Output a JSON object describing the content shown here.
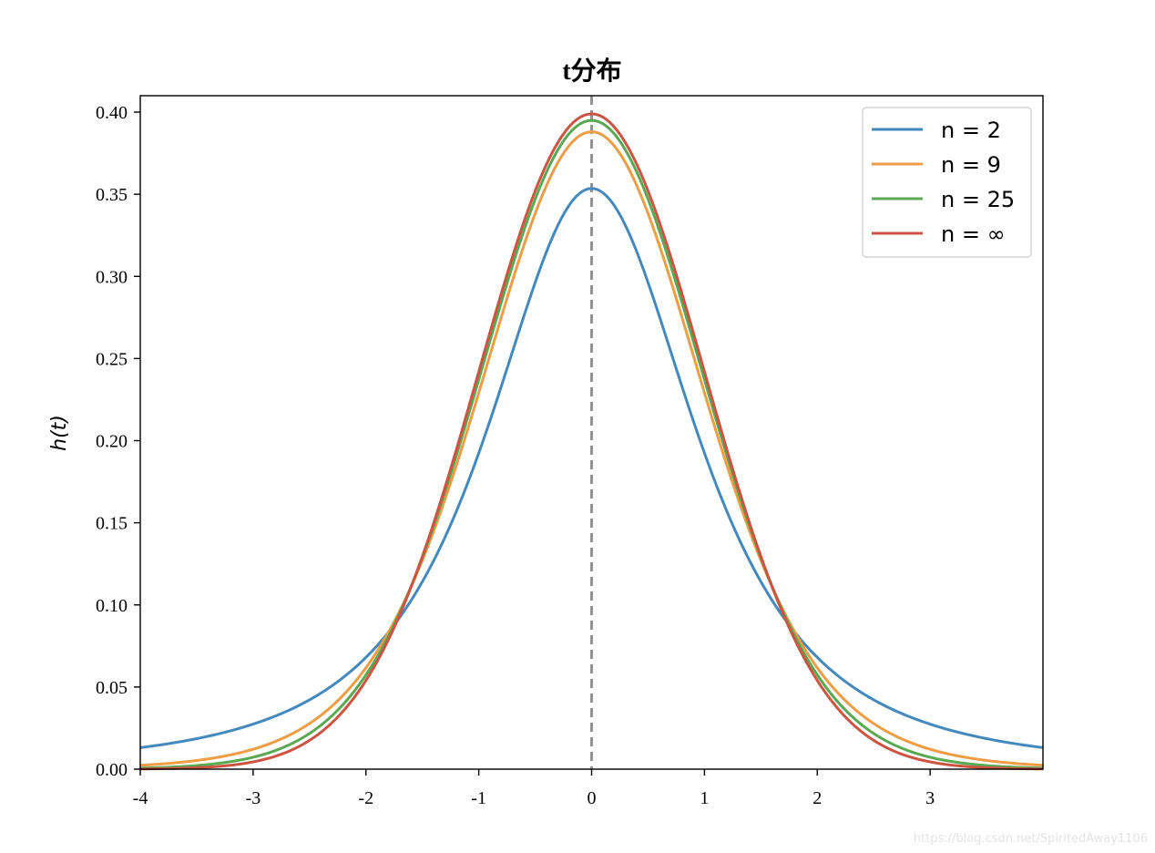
{
  "chart_data": {
    "type": "line",
    "title": "t分布",
    "xlabel": "",
    "ylabel": "h(t)",
    "xlim": [
      -4,
      4
    ],
    "ylim": [
      0,
      0.41
    ],
    "x_ticks": [
      -4,
      -3,
      -2,
      -1,
      0,
      1,
      2,
      3
    ],
    "x_tick_labels": [
      "-4",
      "-3",
      "-2",
      "-1",
      "0",
      "1",
      "2",
      "3"
    ],
    "y_ticks": [
      0,
      0.05,
      0.1,
      0.15,
      0.2,
      0.25,
      0.3,
      0.35,
      0.4
    ],
    "y_tick_labels": [
      "0.00",
      "0.05",
      "0.10",
      "0.15",
      "0.20",
      "0.25",
      "0.30",
      "0.35",
      "0.40"
    ],
    "grid": false,
    "legend_position": "top-right",
    "vline": {
      "x": 0,
      "style": "dashed",
      "color": "#929292"
    },
    "series": [
      {
        "name": "n = 2",
        "df": 2,
        "color": "#4489bd",
        "x": [
          -4,
          -3.5,
          -3,
          -2.5,
          -2,
          -1.5,
          -1,
          -0.5,
          0,
          0.5,
          1,
          1.5,
          2,
          2.5,
          3,
          3.5,
          4
        ],
        "y": [
          0.0131,
          0.0185,
          0.0275,
          0.0422,
          0.068,
          0.1135,
          0.1925,
          0.2962,
          0.3536,
          0.2962,
          0.1925,
          0.1135,
          0.068,
          0.0422,
          0.0275,
          0.0185,
          0.0131
        ]
      },
      {
        "name": "n = 9",
        "df": 9,
        "color": "#ee9d45",
        "x": [
          -4,
          -3.5,
          -3,
          -2.5,
          -2,
          -1.5,
          -1,
          -0.5,
          0,
          0.5,
          1,
          1.5,
          2,
          2.5,
          3,
          3.5,
          4
        ],
        "y": [
          0.0026,
          0.0059,
          0.0133,
          0.0289,
          0.0604,
          0.1185,
          0.2235,
          0.3399,
          0.388,
          0.3399,
          0.2235,
          0.1185,
          0.0604,
          0.0289,
          0.0133,
          0.0059,
          0.0026
        ]
      },
      {
        "name": "n = 25",
        "df": 25,
        "color": "#5ba853",
        "x": [
          -4,
          -3.5,
          -3,
          -2.5,
          -2,
          -1.5,
          -1,
          -0.5,
          0,
          0.5,
          1,
          1.5,
          2,
          2.5,
          3,
          3.5,
          4
        ],
        "y": [
          0.0006,
          0.0022,
          0.0065,
          0.0198,
          0.0547,
          0.1257,
          0.2371,
          0.3465,
          0.394,
          0.3465,
          0.2371,
          0.1257,
          0.0547,
          0.0198,
          0.0065,
          0.0022,
          0.0006
        ]
      },
      {
        "name": "n = ∞",
        "df": null,
        "color": "#cc5442",
        "x": [
          -4,
          -3.5,
          -3,
          -2.5,
          -2,
          -1.5,
          -1,
          -0.5,
          0,
          0.5,
          1,
          1.5,
          2,
          2.5,
          3,
          3.5,
          4
        ],
        "y": [
          0.0001,
          0.0009,
          0.0044,
          0.0175,
          0.054,
          0.1295,
          0.242,
          0.3521,
          0.3989,
          0.3521,
          0.242,
          0.1295,
          0.054,
          0.0175,
          0.0044,
          0.0009,
          0.0001
        ]
      }
    ]
  },
  "watermark": "https://blog.csdn.net/SpiritedAway1106"
}
